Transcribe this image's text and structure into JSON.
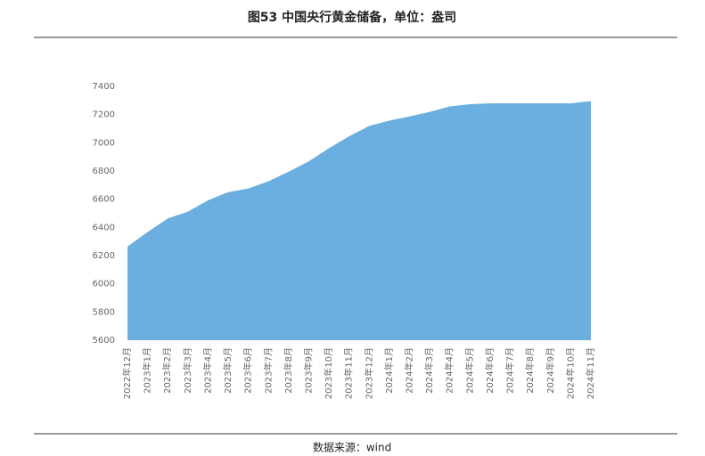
{
  "chart_data": {
    "type": "area",
    "title": "图53  中国央行黄金储备，单位：盎司",
    "source": "数据来源：wind",
    "categories": [
      "2022年12月",
      "2023年1月",
      "2023年2月",
      "2023年3月",
      "2023年4月",
      "2023年5月",
      "2023年6月",
      "2023年7月",
      "2023年8月",
      "2023年9月",
      "2023年10月",
      "2023年11月",
      "2023年12月",
      "2024年1月",
      "2024年2月",
      "2024年3月",
      "2024年4月",
      "2024年5月",
      "2024年6月",
      "2024年7月",
      "2024年8月",
      "2024年9月",
      "2024年10月",
      "2024年11月"
    ],
    "values": [
      6264,
      6367,
      6464,
      6512,
      6592,
      6650,
      6676,
      6727,
      6795,
      6869,
      6962,
      7046,
      7120,
      7158,
      7187,
      7219,
      7258,
      7274,
      7280,
      7280,
      7280,
      7280,
      7280,
      7296
    ],
    "color": "#6aafdf",
    "ylim": [
      5600,
      7400
    ],
    "yticks": [
      5600,
      5800,
      6000,
      6200,
      6400,
      6600,
      6800,
      7000,
      7200,
      7400
    ],
    "grid": false
  }
}
